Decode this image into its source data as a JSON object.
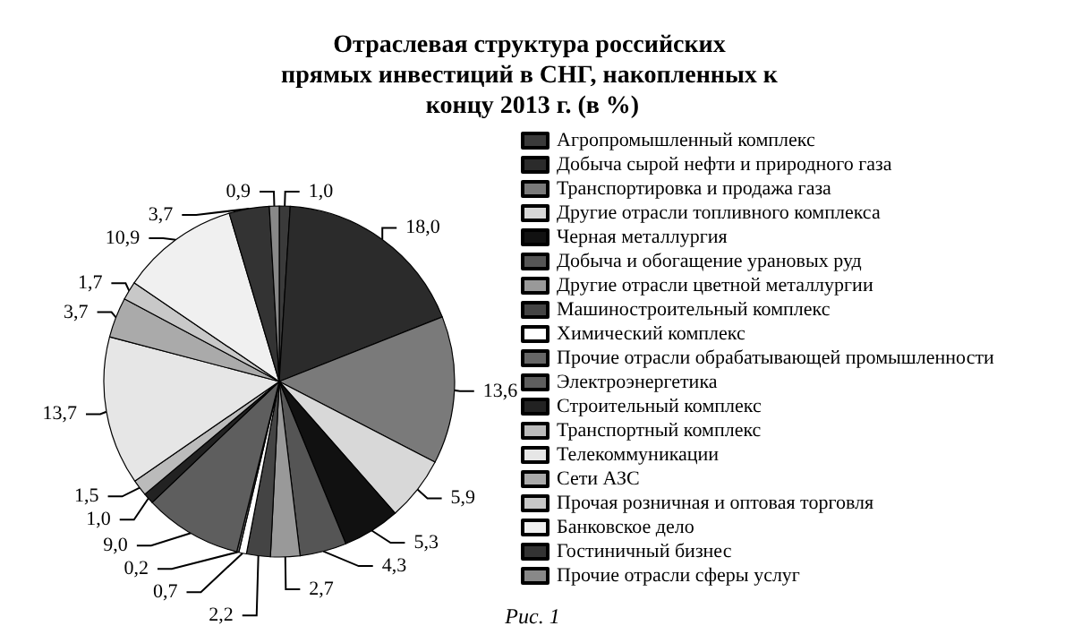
{
  "chart_data": {
    "type": "pie",
    "title": "Отраслевая структура российских прямых инвестиций в СНГ, накопленных к концу 2013 г. (в %)",
    "categories": [
      "Агропромышленный комплекс",
      "Добыча сырой нефти и природного газа",
      "Транспортировка и продажа газа",
      "Другие отрасли топливного комплекса",
      "Черная металлургия",
      "Добыча и обогащение урановых руд",
      "Другие отрасли цветной металлургии",
      "Машиностроительный комплекс",
      "Химический комплекс",
      "Прочие отрасли обрабатывающей промышленности",
      "Электроэнергетика",
      "Строительный комплекс",
      "Транспортный комплекс",
      "Телекоммуникации",
      "Сети АЗС",
      "Прочая розничная и оптовая торговля",
      "Банковское дело",
      "Гостиничный бизнес",
      "Прочие отрасли сферы услуг"
    ],
    "values": [
      1.0,
      18.0,
      13.6,
      5.9,
      5.3,
      4.3,
      2.7,
      2.2,
      0.7,
      0.2,
      9.0,
      1.0,
      1.5,
      13.7,
      3.7,
      1.7,
      10.9,
      3.7,
      0.9
    ],
    "value_labels": [
      "1,0",
      "18,0",
      "13,6",
      "5,9",
      "5,3",
      "4,3",
      "2,7",
      "2,2",
      "0,7",
      "0,2",
      "9,0",
      "1,0",
      "1,5",
      "13,7",
      "3,7",
      "1,7",
      "10,9",
      "3,7",
      "0,9"
    ],
    "colors": [
      "#3a3a3a",
      "#2b2b2b",
      "#7a7a7a",
      "#d8d8d8",
      "#111111",
      "#555555",
      "#999999",
      "#444444",
      "#ffffff",
      "#666666",
      "#5e5e5e",
      "#222222",
      "#bbbbbb",
      "#e6e6e6",
      "#aaaaaa",
      "#c8c8c8",
      "#f0f0f0",
      "#333333",
      "#888888"
    ],
    "legend": "right",
    "annotations": [
      "Рис. 1"
    ]
  }
}
